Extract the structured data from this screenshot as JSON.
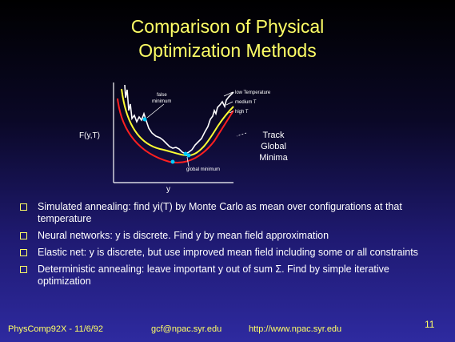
{
  "slide": {
    "title_line1": "Comparison of Physical",
    "title_line2": "Optimization Methods",
    "page_number": "11"
  },
  "figure": {
    "ylabel": "F(y,T)",
    "xlabel": "y",
    "label_false_minimum": "false minimum",
    "label_global_minimum": "global minimum",
    "label_low_temp": "low Temperature",
    "label_medium_temp": "medium T",
    "label_high_temp": "high T",
    "track_line1": "Track",
    "track_line2": "Global",
    "track_line3": "Minima",
    "colors": {
      "low_temperature": "#ffffff",
      "medium_temperature": "#ffff33",
      "high_temperature": "#ff2020",
      "minima_markers": "#00ccff"
    }
  },
  "bullets": [
    "Simulated annealing: find yi(T) by Monte Carlo as mean over configurations at that temperature",
    "Neural networks: y is discrete.  Find y by mean field approximation",
    "Elastic net: y is discrete, but use improved mean field including some or all constraints",
    "Deterministic annealing: leave important y out of sum Σ.  Find by simple iterative optimization"
  ],
  "footer": {
    "left": "PhysComp92X - 11/6/92",
    "email": "gcf@npac.syr.edu",
    "url": "http://www.npac.syr.edu"
  }
}
